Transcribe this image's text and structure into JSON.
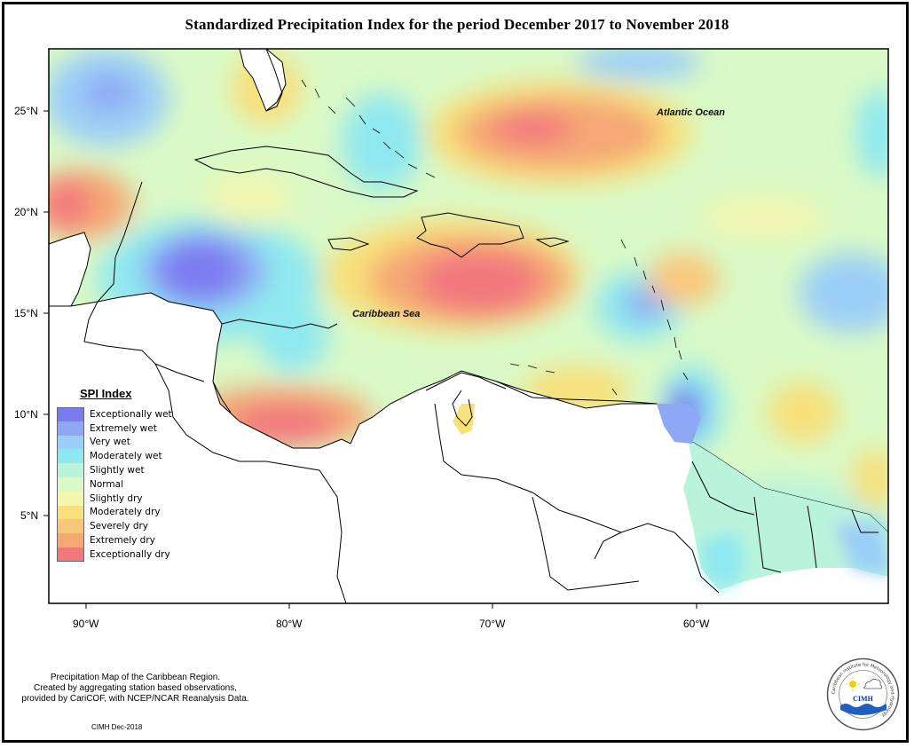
{
  "title": "Standardized Precipitation Index for the period December 2017 to November 2018",
  "map": {
    "lat_labels": [
      "25°N",
      "20°N",
      "15°N",
      "10°N",
      "5°N"
    ],
    "lon_labels": [
      "90°W",
      "80°W",
      "70°W",
      "60°W"
    ],
    "place_labels": {
      "atlantic": "Atlantic Ocean",
      "caribbean": "Caribbean Sea"
    }
  },
  "legend": {
    "title": "SPI Index",
    "items": [
      {
        "label": "Exceptionally wet",
        "color": "#7b7bf0"
      },
      {
        "label": "Extremely wet",
        "color": "#8fa8f4"
      },
      {
        "label": "Very wet",
        "color": "#9ccff7"
      },
      {
        "label": "Moderately wet",
        "color": "#8fe8f0"
      },
      {
        "label": "Slightly wet",
        "color": "#b9f3dc"
      },
      {
        "label": "Normal",
        "color": "#d9f9c6"
      },
      {
        "label": "Slightly dry",
        "color": "#f2f7b0"
      },
      {
        "label": "Moderately dry",
        "color": "#f8e07a"
      },
      {
        "label": "Severely dry",
        "color": "#f9c77a"
      },
      {
        "label": "Extremely dry",
        "color": "#f5a774"
      },
      {
        "label": "Exceptionally dry",
        "color": "#f2787e"
      }
    ]
  },
  "caption": {
    "line1": "Precipitation Map of the Caribbean Region.",
    "line2": "Created by aggregating station based observations,",
    "line3": "provided by CariCOF, with NCEP/NCAR Reanalysis Data."
  },
  "credit": "CIMH Dec-2018",
  "logo": {
    "text": "CIMH",
    "ring_text": "Caribbean Institute for Meteorology and Hydrology"
  }
}
